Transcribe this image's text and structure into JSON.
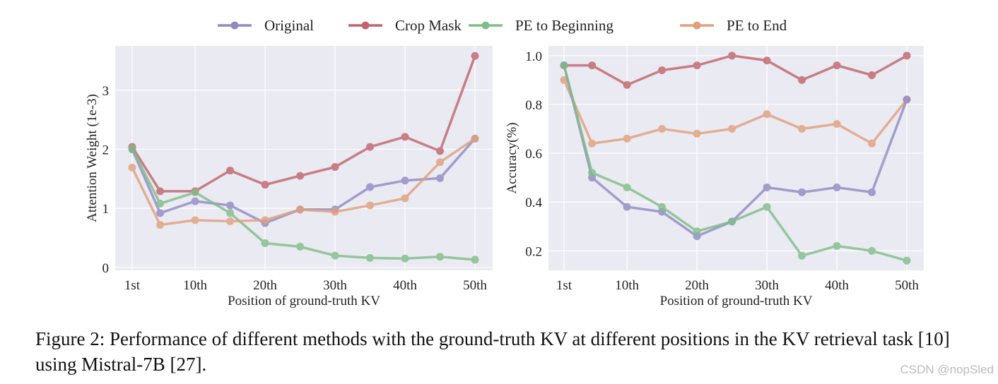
{
  "legend": [
    {
      "name": "Original",
      "color": "#9189c4"
    },
    {
      "name": "Crop Mask",
      "color": "#c0636b"
    },
    {
      "name": "PE to Beginning",
      "color": "#7fbd88"
    },
    {
      "name": "PE to End",
      "color": "#e0a07c"
    }
  ],
  "chart_data": [
    {
      "type": "line",
      "xlabel": "Position of ground-truth KV",
      "ylabel": "Attention Weight (1e-3)",
      "x": [
        1,
        5,
        10,
        15,
        20,
        25,
        30,
        35,
        40,
        45,
        50
      ],
      "xticks": [
        1,
        10,
        20,
        30,
        40,
        50
      ],
      "xtick_labels": [
        "1st",
        "10th",
        "20th",
        "30th",
        "40th",
        "50th"
      ],
      "yticks": [
        0,
        1,
        2,
        3
      ],
      "ytick_labels": [
        "0",
        "1",
        "2",
        "3"
      ],
      "ylim": [
        -0.05,
        3.75
      ],
      "grid": true,
      "series": [
        {
          "name": "Original",
          "values": [
            2.0,
            0.92,
            1.12,
            1.05,
            0.75,
            0.98,
            0.98,
            1.36,
            1.47,
            1.51,
            2.18
          ]
        },
        {
          "name": "Crop Mask",
          "values": [
            2.04,
            1.29,
            1.29,
            1.64,
            1.4,
            1.55,
            1.7,
            2.04,
            2.21,
            1.97,
            3.58
          ]
        },
        {
          "name": "PE to Beginning",
          "values": [
            2.01,
            1.08,
            1.27,
            0.92,
            0.41,
            0.35,
            0.2,
            0.16,
            0.15,
            0.18,
            0.13
          ]
        },
        {
          "name": "PE to End",
          "values": [
            1.69,
            0.72,
            0.8,
            0.78,
            0.8,
            0.98,
            0.94,
            1.05,
            1.17,
            1.78,
            2.18
          ]
        }
      ]
    },
    {
      "type": "line",
      "xlabel": "Position of ground-truth KV",
      "ylabel": "Accuracy(%)",
      "x": [
        1,
        5,
        10,
        15,
        20,
        25,
        30,
        35,
        40,
        45,
        50
      ],
      "xticks": [
        1,
        10,
        20,
        30,
        40,
        50
      ],
      "xtick_labels": [
        "1st",
        "10th",
        "20th",
        "30th",
        "40th",
        "50th"
      ],
      "yticks": [
        0.2,
        0.4,
        0.6,
        0.8,
        1.0
      ],
      "ytick_labels": [
        "0.2",
        "0.4",
        "0.6",
        "0.8",
        "1.0"
      ],
      "ylim": [
        0.12,
        1.04
      ],
      "grid": true,
      "series": [
        {
          "name": "Crop Mask",
          "values": [
            0.96,
            0.96,
            0.88,
            0.94,
            0.96,
            1.0,
            0.98,
            0.9,
            0.96,
            0.92,
            1.0
          ]
        },
        {
          "name": "PE to End",
          "values": [
            0.9,
            0.64,
            0.66,
            0.7,
            0.68,
            0.7,
            0.76,
            0.7,
            0.72,
            0.64,
            0.82
          ]
        },
        {
          "name": "Original",
          "values": [
            0.96,
            0.5,
            0.38,
            0.36,
            0.26,
            0.32,
            0.46,
            0.44,
            0.46,
            0.44,
            0.82
          ]
        },
        {
          "name": "PE to Beginning",
          "values": [
            0.96,
            0.52,
            0.46,
            0.38,
            0.28,
            0.32,
            0.38,
            0.18,
            0.22,
            0.2,
            0.16
          ]
        }
      ]
    }
  ],
  "caption": "Figure 2: Performance of different methods with the ground-truth KV at different positions in the KV retrieval task [10] using Mistral-7B [27].",
  "watermark": "CSDN @nopSled"
}
